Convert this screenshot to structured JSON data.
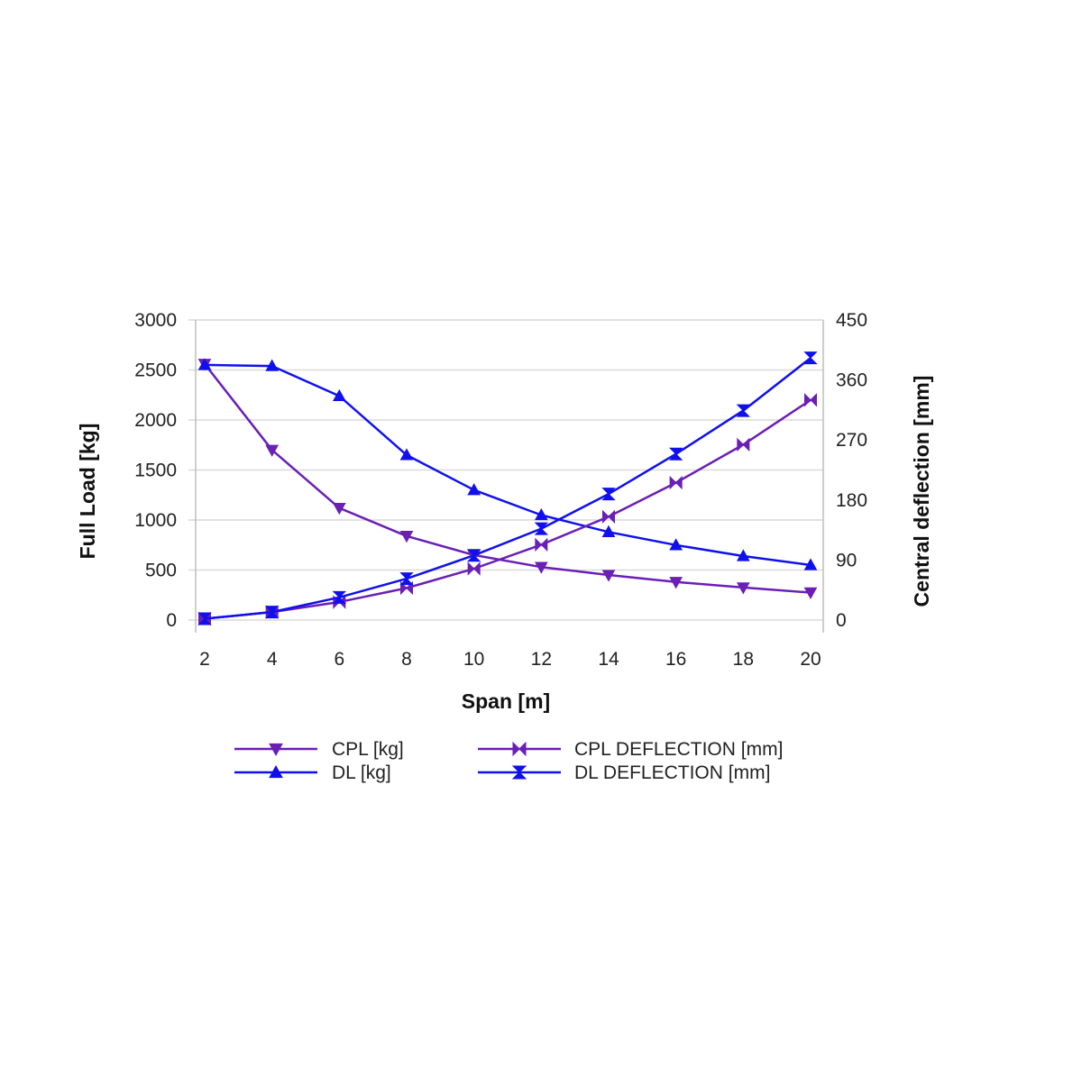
{
  "colors": {
    "purple": "#6a1fb5",
    "blue": "#1010ee",
    "grid": "#d9d9d9",
    "axis": "#bdbdbd"
  },
  "chart_data": {
    "type": "line",
    "xlabel": "Span [m]",
    "ylabel_left": "Full Load [kg]",
    "ylabel_right": "Central deflection [mm]",
    "x": [
      2,
      4,
      6,
      8,
      10,
      12,
      14,
      16,
      18,
      20
    ],
    "x_ticks": [
      "2",
      "4",
      "6",
      "8",
      "10",
      "12",
      "14",
      "16",
      "18",
      "20"
    ],
    "xlim": [
      2,
      20
    ],
    "ylim_left": [
      0,
      3000
    ],
    "ylim_right": [
      0,
      450
    ],
    "y_ticks_left": [
      "0",
      "500",
      "1000",
      "1500",
      "2000",
      "2500",
      "3000"
    ],
    "y_ticks_right": [
      "0",
      "90",
      "180",
      "270",
      "360",
      "450"
    ],
    "grid": true,
    "legend_position": "bottom",
    "series": [
      {
        "name": "CPL [kg]",
        "axis": "left",
        "color": "#6a1fb5",
        "marker": "triangle-down",
        "values": [
          2560,
          1700,
          1120,
          840,
          650,
          530,
          450,
          380,
          325,
          275
        ]
      },
      {
        "name": "DL [kg]",
        "axis": "left",
        "color": "#1010ee",
        "marker": "triangle-up",
        "values": [
          2550,
          2540,
          2240,
          1650,
          1300,
          1050,
          880,
          750,
          640,
          550
        ]
      },
      {
        "name": "CPL DEFLECTION [mm]",
        "axis": "right",
        "color": "#6a1fb5",
        "marker": "bowtie-horizontal",
        "values": [
          2,
          12,
          27,
          48,
          77,
          113,
          155,
          206,
          263,
          330
        ]
      },
      {
        "name": "DL DEFLECTION [mm]",
        "axis": "right",
        "color": "#1010ee",
        "marker": "hourglass",
        "values": [
          2,
          12,
          34,
          62,
          97,
          137,
          189,
          249,
          314,
          393
        ]
      }
    ]
  }
}
